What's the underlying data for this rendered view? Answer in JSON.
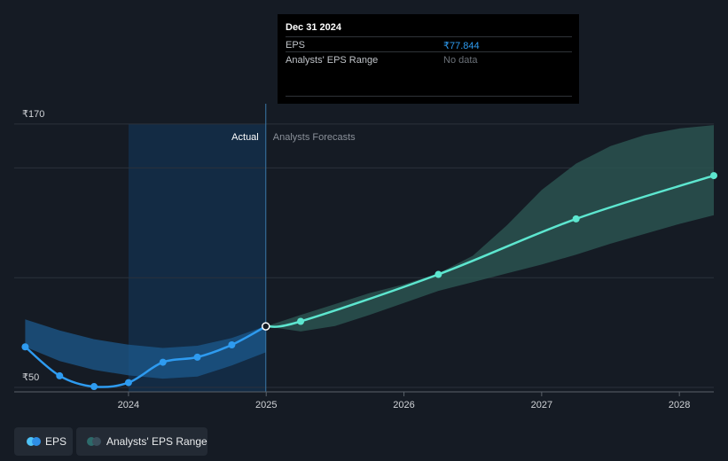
{
  "tooltip": {
    "date": "Dec 31 2024",
    "rows": [
      {
        "label": "EPS",
        "value": "₹77.844"
      },
      {
        "label": "Analysts' EPS Range",
        "value": "No data"
      }
    ]
  },
  "legend": {
    "items": [
      {
        "label": "EPS",
        "color_a": "#4fc3f7",
        "color_b": "#2e8ee5"
      },
      {
        "label": "Analysts' EPS Range",
        "color_a": "#2d6a6a",
        "color_b": "#3a4d5a"
      }
    ]
  },
  "colors": {
    "background": "#151b24",
    "actual_region": "#13324f",
    "eps_line": "#2e9bf0",
    "forecast_line": "#5de6cf",
    "actual_range_band": "#1c5a8c",
    "forecast_range_band": "#2c5652",
    "gridline": "#2b323b",
    "axis_text": "#d0d3d7",
    "actual_label": "#ffffff",
    "forecast_label": "#8a9099"
  },
  "chart_data": {
    "type": "line",
    "title": "",
    "xlabel": "",
    "ylabel": "",
    "currency_symbol": "₹",
    "x_range": [
      2023.17,
      2028.25
    ],
    "y_range": [
      48,
      174
    ],
    "y_ticks": [
      {
        "value": 170,
        "label": "₹170"
      },
      {
        "value": 50,
        "label": "₹50"
      }
    ],
    "y_gridlines": [
      170,
      150,
      100,
      50
    ],
    "x_ticks": [
      {
        "value": 2024,
        "label": "2024"
      },
      {
        "value": 2025,
        "label": "2025"
      },
      {
        "value": 2026,
        "label": "2026"
      },
      {
        "value": 2027,
        "label": "2027"
      },
      {
        "value": 2028,
        "label": "2028"
      }
    ],
    "region_labels": {
      "actual": "Actual",
      "forecast": "Analysts Forecasts"
    },
    "divider_x": 2024.997,
    "actual_region_x": [
      2024,
      2024.997
    ],
    "grid": true,
    "series": [
      {
        "name": "EPS",
        "role": "actual",
        "points": [
          {
            "x": 2023.25,
            "y": 68.5
          },
          {
            "x": 2023.5,
            "y": 55.3
          },
          {
            "x": 2023.75,
            "y": 50.4
          },
          {
            "x": 2024.0,
            "y": 52.2
          },
          {
            "x": 2024.25,
            "y": 61.5
          },
          {
            "x": 2024.5,
            "y": 63.8
          },
          {
            "x": 2024.75,
            "y": 69.4
          },
          {
            "x": 2024.997,
            "y": 77.844
          }
        ]
      },
      {
        "name": "Analysts' EPS forecast",
        "role": "forecast",
        "points": [
          {
            "x": 2024.997,
            "y": 77.844
          },
          {
            "x": 2025.25,
            "y": 80.1
          },
          {
            "x": 2026.25,
            "y": 101.5
          },
          {
            "x": 2027.25,
            "y": 126.8
          },
          {
            "x": 2028.25,
            "y": 146.5
          }
        ]
      }
    ],
    "ranges": [
      {
        "name": "Analysts' EPS Range (past)",
        "x": [
          2023.25,
          2023.5,
          2023.75,
          2024.0,
          2024.25,
          2024.5,
          2024.75,
          2024.997
        ],
        "low": [
          68.5,
          62.0,
          58.0,
          55.5,
          54.0,
          55.0,
          60.0,
          66.0
        ],
        "high": [
          81.0,
          76.0,
          72.0,
          69.5,
          68.0,
          69.0,
          72.5,
          78.0
        ]
      },
      {
        "name": "Analysts' EPS Range (forecast)",
        "x": [
          2024.997,
          2025.25,
          2025.5,
          2025.75,
          2026.0,
          2026.25,
          2026.5,
          2026.75,
          2027.0,
          2027.25,
          2027.5,
          2027.75,
          2028.0,
          2028.25
        ],
        "low": [
          77.844,
          75.5,
          78.0,
          83.0,
          88.5,
          94.0,
          98.0,
          102.0,
          106.0,
          110.5,
          115.5,
          120.0,
          124.5,
          128.5
        ],
        "high": [
          77.844,
          83.0,
          88.0,
          93.0,
          97.0,
          102.0,
          110.0,
          124.0,
          140.0,
          152.0,
          160.0,
          165.0,
          168.0,
          169.5
        ]
      }
    ]
  }
}
